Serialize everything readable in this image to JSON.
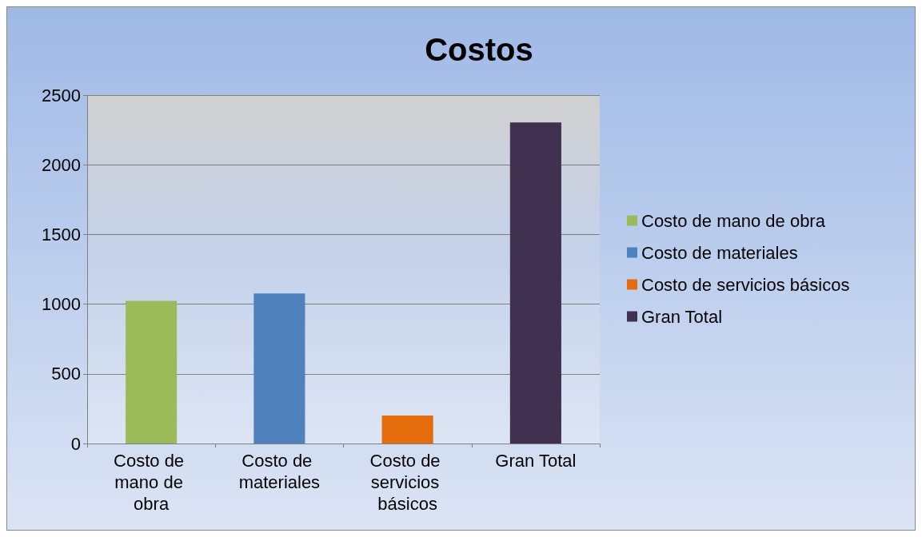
{
  "chart_data": {
    "type": "bar",
    "title": "Costos",
    "categories": [
      "Costo de mano de obra",
      "Costo de materiales",
      "Costo de servicios básicos",
      "Gran Total"
    ],
    "series": [
      {
        "name": "Costo de mano de obra",
        "color": "#9bbb59",
        "values": [
          1023,
          null,
          null,
          null
        ]
      },
      {
        "name": "Costo de materiales",
        "color": "#4f81bd",
        "values": [
          null,
          1076,
          null,
          null
        ]
      },
      {
        "name": "Costo de servicios básicos",
        "color": "#e46c0a",
        "values": [
          null,
          null,
          201,
          null
        ]
      },
      {
        "name": "Gran Total",
        "color": "#403151",
        "values": [
          null,
          null,
          null,
          2304
        ]
      }
    ],
    "stacked": true,
    "ylim": [
      0,
      2500
    ],
    "yticks": [
      0,
      500,
      1000,
      1500,
      2000,
      2500
    ],
    "grid": "y",
    "legend": "right"
  }
}
